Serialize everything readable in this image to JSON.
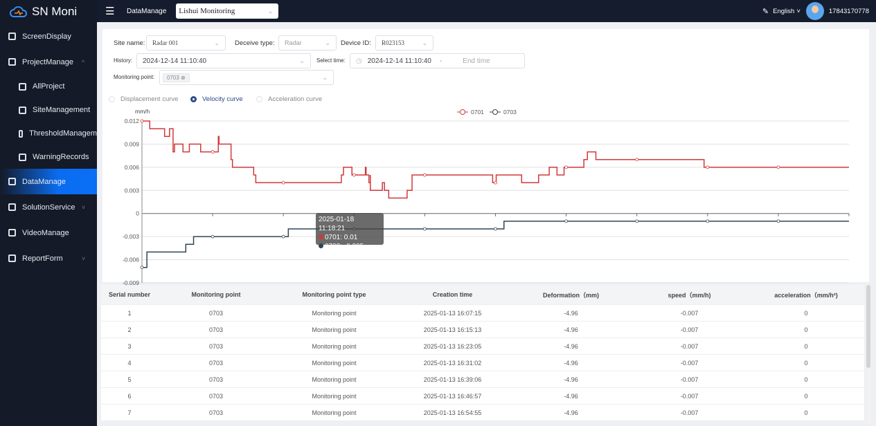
{
  "app": {
    "title": "SN Moni"
  },
  "sidebar": {
    "items": [
      {
        "label": "ScreenDisplay",
        "icon": "monitor-icon",
        "sub": false
      },
      {
        "label": "ProjectManage",
        "icon": "project-icon",
        "sub": false,
        "chevron": "^"
      },
      {
        "label": "AllProject",
        "icon": "grid-icon",
        "sub": true
      },
      {
        "label": "SiteManagement",
        "icon": "award-icon",
        "sub": true
      },
      {
        "label": "ThresholdManagem",
        "icon": "briefcase-icon",
        "sub": true
      },
      {
        "label": "WarningRecords",
        "icon": "book-icon",
        "sub": true
      },
      {
        "label": "DataManage",
        "icon": "presentation-icon",
        "sub": false,
        "active": true
      },
      {
        "label": "SolutionService",
        "icon": "database-icon",
        "sub": false,
        "chevron": "˅"
      },
      {
        "label": "VideoManage",
        "icon": "video-icon",
        "sub": false
      },
      {
        "label": "ReportForm",
        "icon": "bar-chart-icon",
        "sub": false,
        "chevron": "˅"
      }
    ]
  },
  "topbar": {
    "breadcrumb": "DataManage",
    "project": "Lishui Monitoring",
    "language": "English",
    "user": "17843170778"
  },
  "filters": {
    "site_label": "Site name:",
    "site": "Radar 001",
    "type_label": "Deceive type:",
    "type": "Radar",
    "device_label": "Device ID:",
    "device": "R023153",
    "history_label": "History:",
    "history": "2024-12-14 11:10:40",
    "select_time_label": "Select time:",
    "start": "2024-12-14 11:10:40",
    "sep": "-",
    "end_placeholder": "End time",
    "point_label": "Monitoring point:",
    "point_tag": "0703"
  },
  "curves": [
    "Displacement curve",
    "Velocity curve",
    "Acceleration curve"
  ],
  "chart_data": {
    "type": "line",
    "step": true,
    "ylabel": "mm/h",
    "ylim": [
      -0.009,
      0.012
    ],
    "yticks": [
      "0.012",
      "0.009",
      "0.006",
      "0.003",
      "0",
      "-0.003",
      "-0.006",
      "-0.009"
    ],
    "yvals": [
      0.012,
      0.009,
      0.006,
      0.003,
      0,
      -0.003,
      -0.006,
      -0.009
    ],
    "x_unit": "percent of time range",
    "legend": "top-center",
    "series": [
      {
        "name": "0701",
        "color": "#d0383a",
        "points": [
          [
            0,
            0.012
          ],
          [
            1.1,
            0.011
          ],
          [
            3.2,
            0.01
          ],
          [
            3.9,
            0.011
          ],
          [
            4.4,
            0.008
          ],
          [
            4.6,
            0.009
          ],
          [
            5.8,
            0.008
          ],
          [
            6.7,
            0.009
          ],
          [
            8.3,
            0.008
          ],
          [
            10.8,
            0.01
          ],
          [
            10.9,
            0.009
          ],
          [
            12.6,
            0.007
          ],
          [
            12.8,
            0.006
          ],
          [
            15.8,
            0.005
          ],
          [
            16.1,
            0.004
          ],
          [
            28.2,
            0.005
          ],
          [
            28.5,
            0.006
          ],
          [
            29.7,
            0.005
          ],
          [
            31.6,
            0.006
          ],
          [
            31.7,
            0.005
          ],
          [
            32.1,
            0.004
          ],
          [
            32.3,
            0.005
          ],
          [
            32.3,
            0.003
          ],
          [
            34,
            0.004
          ],
          [
            34.3,
            0.003
          ],
          [
            34.9,
            0.002
          ],
          [
            37.5,
            0.003
          ],
          [
            38.2,
            0.005
          ],
          [
            49.6,
            0.004
          ],
          [
            50.1,
            0.005
          ],
          [
            53.7,
            0.004
          ],
          [
            56.1,
            0.005
          ],
          [
            57.6,
            0.006
          ],
          [
            58.7,
            0.005
          ],
          [
            59.7,
            0.006
          ],
          [
            62.5,
            0.007
          ],
          [
            63,
            0.008
          ],
          [
            64.2,
            0.007
          ],
          [
            79.5,
            0.006
          ],
          [
            100,
            0.006
          ]
        ]
      },
      {
        "name": "0703",
        "color": "#2f4556",
        "points": [
          [
            0,
            -0.007
          ],
          [
            0.7,
            -0.005
          ],
          [
            6.2,
            -0.004
          ],
          [
            7.3,
            -0.003
          ],
          [
            20.7,
            -0.002
          ],
          [
            51.2,
            -0.001
          ],
          [
            100,
            -0.001
          ]
        ]
      }
    ],
    "tooltip": {
      "time": "2025-01-18 11:18:21",
      "rows": [
        "0701: 0.01",
        "0703: -0.005"
      ]
    }
  },
  "table": {
    "headers": [
      "Serial number",
      "Monitoring point",
      "Monitoring point type",
      "Creation time",
      "Deformation（mm)",
      "speed（mm/h)",
      "acceleration（mm/h²)"
    ],
    "rows": [
      [
        "1",
        "0703",
        "Monitoring point",
        "2025-01-13 16:07:15",
        "-4.96",
        "-0.007",
        "0"
      ],
      [
        "2",
        "0703",
        "Monitoring point",
        "2025-01-13 16:15:13",
        "-4.96",
        "-0.007",
        "0"
      ],
      [
        "3",
        "0703",
        "Monitoring point",
        "2025-01-13 16:23:05",
        "-4.96",
        "-0.007",
        "0"
      ],
      [
        "4",
        "0703",
        "Monitoring point",
        "2025-01-13 16:31:02",
        "-4.96",
        "-0.007",
        "0"
      ],
      [
        "5",
        "0703",
        "Monitoring point",
        "2025-01-13 16:39:06",
        "-4.96",
        "-0.007",
        "0"
      ],
      [
        "6",
        "0703",
        "Monitoring point",
        "2025-01-13 16:46:57",
        "-4.96",
        "-0.007",
        "0"
      ],
      [
        "7",
        "0703",
        "Monitoring point",
        "2025-01-13 16:54:55",
        "-4.96",
        "-0.007",
        "0"
      ]
    ]
  }
}
